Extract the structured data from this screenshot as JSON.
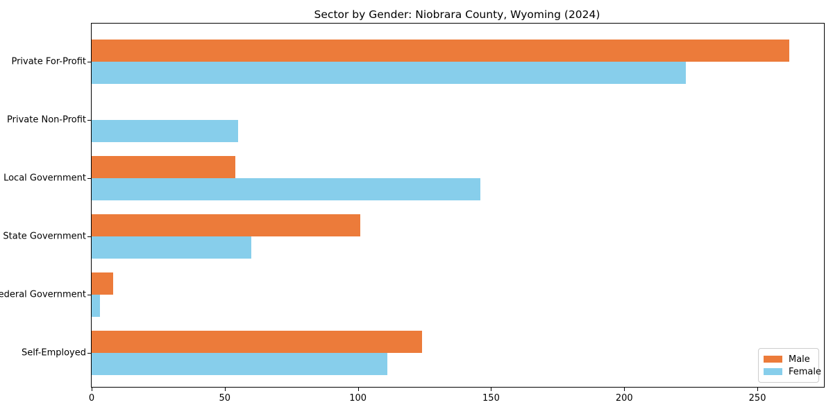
{
  "title": "Sector by Gender: Niobrara County, Wyoming (2024)",
  "chart_data": {
    "type": "bar",
    "orientation": "horizontal",
    "title": "Sector by Gender: Niobrara County, Wyoming (2024)",
    "categories": [
      "Private For-Profit",
      "Private Non-Profit",
      "Local Government",
      "State Government",
      "Federal Government",
      "Self-Employed"
    ],
    "series": [
      {
        "name": "Male",
        "color": "#ec7b3a",
        "values": [
          262,
          0,
          54,
          101,
          8,
          124
        ]
      },
      {
        "name": "Female",
        "color": "#87ceeb",
        "values": [
          223,
          55,
          146,
          60,
          3,
          111
        ]
      }
    ],
    "xlabel": "",
    "ylabel": "",
    "xlim": [
      0,
      275
    ],
    "xticks": [
      0,
      50,
      100,
      150,
      200,
      250
    ],
    "grid": false,
    "legend_position": "lower right",
    "category_order": "top-to-bottom"
  }
}
